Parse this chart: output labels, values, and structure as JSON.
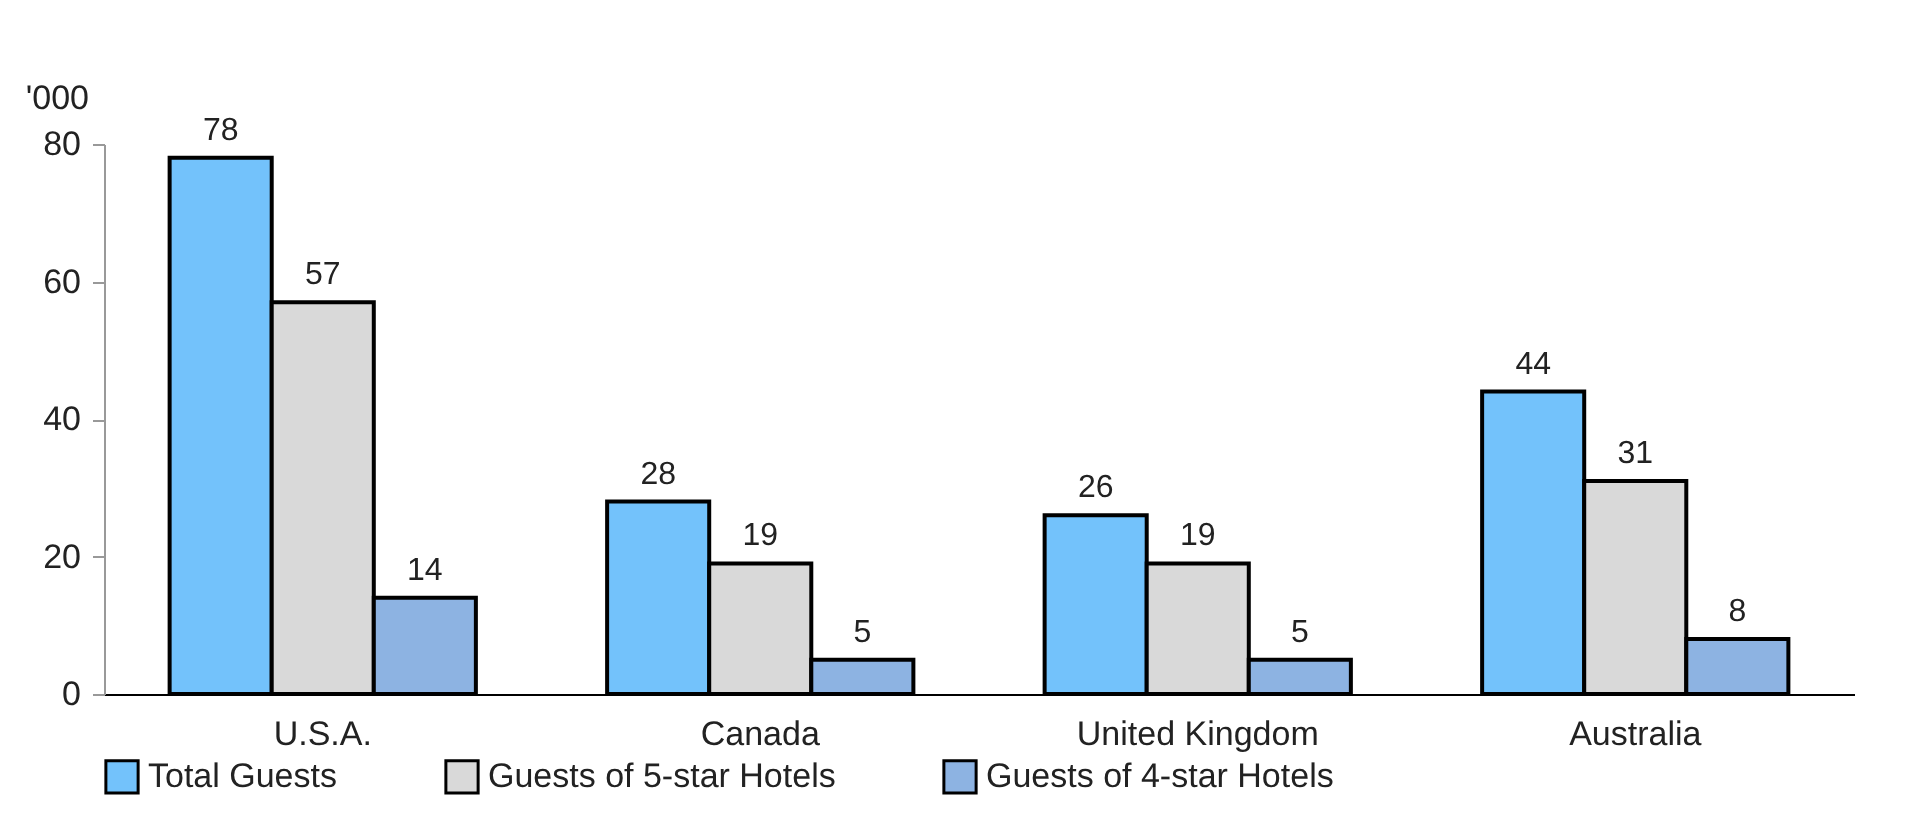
{
  "chart_data": {
    "type": "bar",
    "ylabel": "'000",
    "categories": [
      "U.S.A.",
      "Canada",
      "United Kingdom",
      "Australia"
    ],
    "series": [
      {
        "name": "Total Guests",
        "color": "#73c2fb",
        "values": [
          78,
          28,
          26,
          44
        ]
      },
      {
        "name": "Guests of 5-star Hotels",
        "color": "#d9d9d9",
        "values": [
          57,
          19,
          19,
          31
        ]
      },
      {
        "name": "Guests of 4-star Hotels",
        "color": "#8db3e2",
        "values": [
          14,
          5,
          5,
          8
        ]
      }
    ],
    "ylim": [
      0,
      80
    ],
    "yticks": [
      0,
      20,
      40,
      60,
      80
    ],
    "grid": false,
    "legend": "bottom",
    "data_labels": true
  }
}
